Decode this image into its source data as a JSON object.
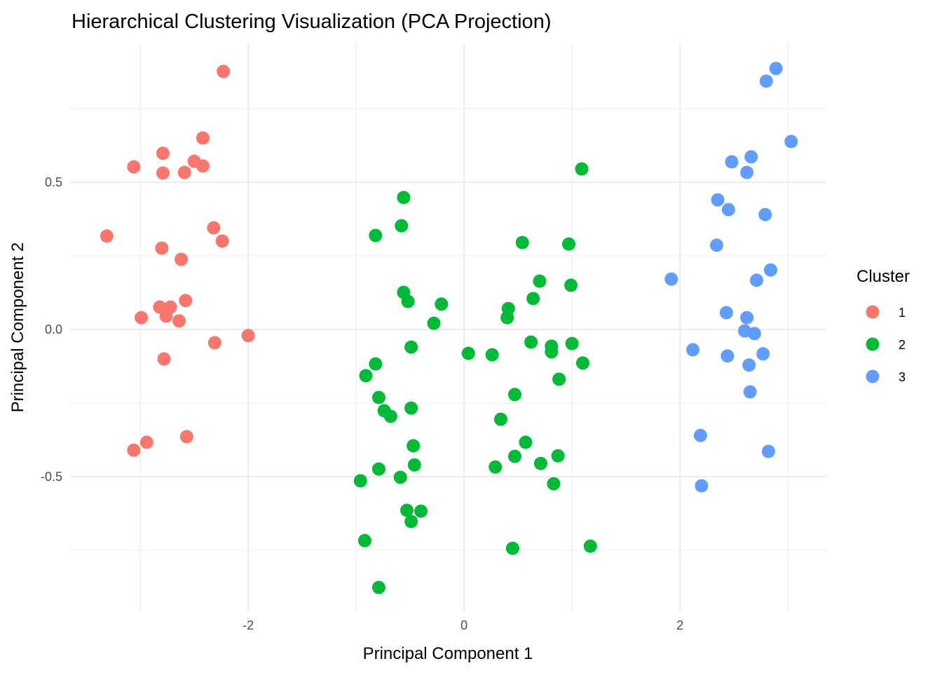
{
  "chart_data": {
    "type": "scatter",
    "title": "Hierarchical Clustering Visualization (PCA Projection)",
    "xlabel": "Principal Component 1",
    "ylabel": "Principal Component 2",
    "xlim": [
      -3.65,
      3.35
    ],
    "ylim": [
      -0.957,
      0.971
    ],
    "x_ticks": [
      -2,
      0,
      2
    ],
    "x_tick_labels": [
      "-2",
      "0",
      "2"
    ],
    "y_ticks": [
      -0.5,
      0,
      0.5
    ],
    "y_tick_labels": [
      "-0.5",
      "0.0",
      "0.5"
    ],
    "grid": true,
    "legend": {
      "title": "Cluster",
      "placement": "right"
    },
    "series": [
      {
        "name": "1",
        "color": "#F8766D",
        "points": [
          [
            -2.23,
            0.876
          ],
          [
            -2.42,
            0.65
          ],
          [
            -2.79,
            0.598
          ],
          [
            -3.06,
            0.552
          ],
          [
            -2.79,
            0.531
          ],
          [
            -2.59,
            0.533
          ],
          [
            -2.5,
            0.571
          ],
          [
            -2.42,
            0.555
          ],
          [
            -3.31,
            0.317
          ],
          [
            -2.32,
            0.345
          ],
          [
            -2.24,
            0.3
          ],
          [
            -2.8,
            0.276
          ],
          [
            -2.62,
            0.238
          ],
          [
            -2.82,
            0.076
          ],
          [
            -2.72,
            0.076
          ],
          [
            -2.76,
            0.045
          ],
          [
            -2.58,
            0.098
          ],
          [
            -2.99,
            0.04
          ],
          [
            -2.64,
            0.029
          ],
          [
            -2.31,
            -0.045
          ],
          [
            -2.0,
            -0.021
          ],
          [
            -2.78,
            -0.1
          ],
          [
            -2.57,
            -0.364
          ],
          [
            -2.94,
            -0.383
          ],
          [
            -3.06,
            -0.41
          ]
        ]
      },
      {
        "name": "2",
        "color": "#00BA38",
        "points": [
          [
            1.09,
            0.545
          ],
          [
            -0.56,
            0.448
          ],
          [
            -0.58,
            0.352
          ],
          [
            -0.82,
            0.319
          ],
          [
            0.54,
            0.295
          ],
          [
            0.97,
            0.29
          ],
          [
            0.7,
            0.164
          ],
          [
            0.99,
            0.15
          ],
          [
            -0.56,
            0.126
          ],
          [
            -0.52,
            0.095
          ],
          [
            -0.21,
            0.086
          ],
          [
            0.64,
            0.105
          ],
          [
            0.41,
            0.071
          ],
          [
            0.4,
            0.04
          ],
          [
            -0.28,
            0.021
          ],
          [
            -0.49,
            -0.06
          ],
          [
            0.04,
            -0.081
          ],
          [
            0.26,
            -0.086
          ],
          [
            0.62,
            -0.043
          ],
          [
            0.81,
            -0.057
          ],
          [
            0.81,
            -0.076
          ],
          [
            1.0,
            -0.048
          ],
          [
            1.1,
            -0.114
          ],
          [
            -0.82,
            -0.117
          ],
          [
            -0.91,
            -0.157
          ],
          [
            0.88,
            -0.169
          ],
          [
            -0.79,
            -0.231
          ],
          [
            0.47,
            -0.221
          ],
          [
            -0.49,
            -0.267
          ],
          [
            -0.74,
            -0.276
          ],
          [
            -0.68,
            -0.295
          ],
          [
            0.34,
            -0.305
          ],
          [
            0.57,
            -0.383
          ],
          [
            -0.47,
            -0.395
          ],
          [
            0.87,
            -0.429
          ],
          [
            0.47,
            -0.431
          ],
          [
            -0.46,
            -0.46
          ],
          [
            0.71,
            -0.455
          ],
          [
            0.29,
            -0.467
          ],
          [
            -0.79,
            -0.474
          ],
          [
            -0.59,
            -0.502
          ],
          [
            -0.96,
            -0.514
          ],
          [
            0.83,
            -0.524
          ],
          [
            -0.53,
            -0.614
          ],
          [
            -0.4,
            -0.617
          ],
          [
            -0.49,
            -0.652
          ],
          [
            -0.92,
            -0.717
          ],
          [
            0.45,
            -0.743
          ],
          [
            1.17,
            -0.736
          ],
          [
            -0.79,
            -0.876
          ]
        ]
      },
      {
        "name": "3",
        "color": "#619CFF",
        "points": [
          [
            2.89,
            0.886
          ],
          [
            2.8,
            0.843
          ],
          [
            3.03,
            0.638
          ],
          [
            2.66,
            0.586
          ],
          [
            2.48,
            0.569
          ],
          [
            2.62,
            0.533
          ],
          [
            2.35,
            0.44
          ],
          [
            2.45,
            0.407
          ],
          [
            2.79,
            0.39
          ],
          [
            2.34,
            0.286
          ],
          [
            2.84,
            0.202
          ],
          [
            1.92,
            0.171
          ],
          [
            2.71,
            0.167
          ],
          [
            2.43,
            0.057
          ],
          [
            2.62,
            0.04
          ],
          [
            2.6,
            -0.005
          ],
          [
            2.69,
            -0.014
          ],
          [
            2.12,
            -0.069
          ],
          [
            2.44,
            -0.09
          ],
          [
            2.77,
            -0.083
          ],
          [
            2.64,
            -0.121
          ],
          [
            2.65,
            -0.212
          ],
          [
            2.19,
            -0.36
          ],
          [
            2.82,
            -0.414
          ],
          [
            2.2,
            -0.531
          ]
        ]
      }
    ]
  }
}
